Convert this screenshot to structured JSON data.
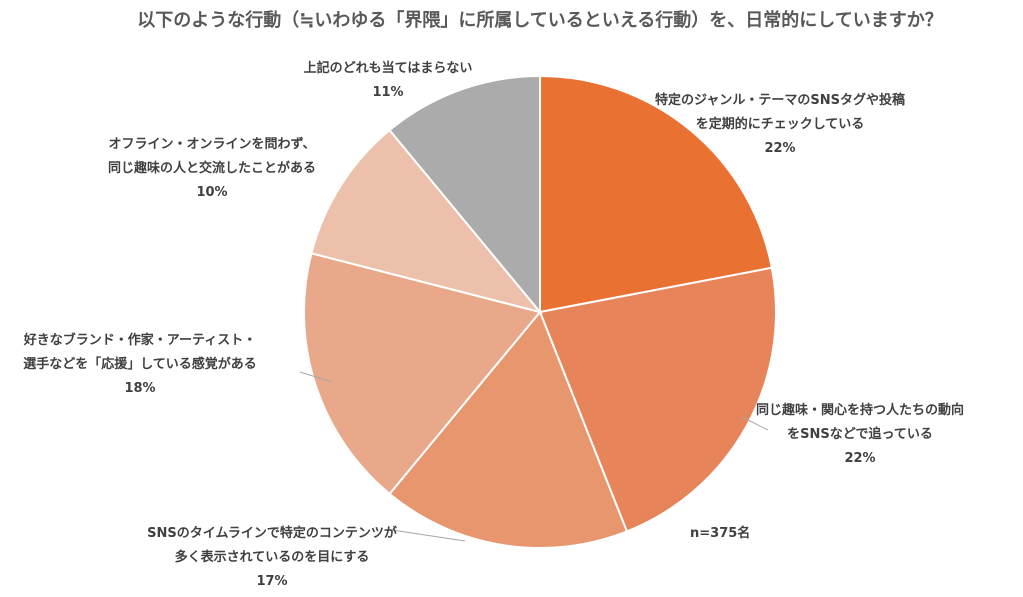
{
  "chart_data": {
    "type": "pie",
    "title": "以下のような行動（≒いわゆる「界隈」に所属しているといえる行動）を、日常的にしていますか？",
    "note": "n=375名",
    "slices": [
      {
        "label_lines": [
          "特定のジャンル・テーマのSNSタグや投稿",
          "を定期的にチェックしている"
        ],
        "percent_label": "22%",
        "value": 22,
        "color": "#E97132"
      },
      {
        "label_lines": [
          "同じ趣味・関心を持つ人たちの動向",
          "をSNSなどで追っている"
        ],
        "percent_label": "22%",
        "value": 22,
        "color": "#E8845A"
      },
      {
        "label_lines": [
          "SNSのタイムラインで特定のコンテンツが",
          "多く表示されているのを目にする"
        ],
        "percent_label": "17%",
        "value": 17,
        "color": "#E8966E"
      },
      {
        "label_lines": [
          "好きなブランド・作家・アーティスト・",
          "選手などを「応援」している感覚がある"
        ],
        "percent_label": "18%",
        "value": 18,
        "color": "#EAA88B"
      },
      {
        "label_lines": [
          "オフライン・オンラインを問わず、",
          "同じ趣味の人と交流したことがある"
        ],
        "percent_label": "10%",
        "value": 10,
        "color": "#EDC0AB"
      },
      {
        "label_lines": [
          "上記のどれも当てはまらない"
        ],
        "percent_label": "11%",
        "value": 11,
        "color": "#ABABAB"
      }
    ]
  }
}
